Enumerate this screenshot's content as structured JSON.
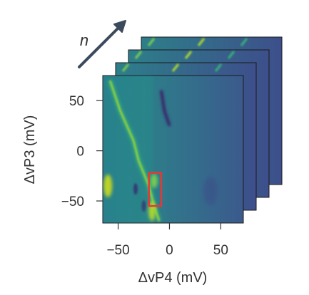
{
  "chart_data": {
    "type": "heatmap",
    "title": "",
    "xlabel": "ΔvP4 (mV)",
    "ylabel": "ΔvP3 (mV)",
    "stack_label": "n",
    "stack_count": 4,
    "xlim": [
      -65,
      72
    ],
    "ylim": [
      -72,
      75
    ],
    "x_ticks": [
      -50,
      0,
      50
    ],
    "y_ticks": [
      50,
      0,
      -50
    ],
    "x_tick_labels": [
      "−50",
      "0",
      "50"
    ],
    "y_tick_labels": [
      "50",
      "0",
      "−50"
    ],
    "colormap": "viridis",
    "grid": false,
    "features": [
      {
        "name": "transition-line-left",
        "x": [
          -58,
          -48,
          -35,
          -30,
          -20,
          -15,
          -10
        ],
        "y": [
          70,
          40,
          10,
          -10,
          -35,
          -55,
          -70
        ]
      },
      {
        "name": "bright-spot-left",
        "x": -60,
        "y": -35
      },
      {
        "name": "transition-line-center",
        "x": [
          -8,
          -5,
          0
        ],
        "y": [
          60,
          40,
          25
        ]
      }
    ],
    "highlight_box": {
      "x": [
        -20,
        -8
      ],
      "y": [
        -55,
        -22
      ],
      "color": "#e53935"
    }
  },
  "colors": {
    "plot_bg": "#2a788e",
    "frame": "#1a1a1a",
    "arrow": "#3b4a5c",
    "highlight": "#e53935"
  }
}
